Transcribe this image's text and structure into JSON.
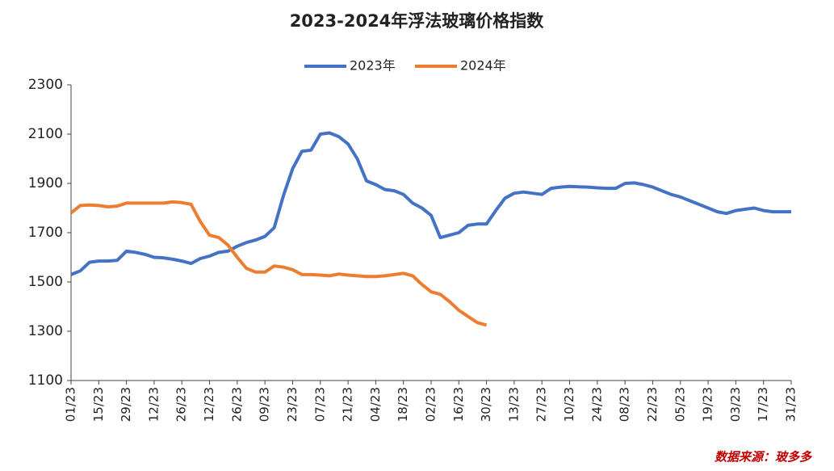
{
  "chart_data": {
    "type": "line",
    "title": "2023-2024年浮法玻璃价格指数",
    "source": "数据来源：玻多多",
    "categories": [
      "01/23",
      null,
      null,
      "15/23",
      null,
      null,
      "29/23",
      null,
      null,
      "12/23",
      null,
      null,
      "26/23",
      null,
      null,
      "12/23",
      null,
      null,
      "26/23",
      null,
      null,
      "09/23",
      null,
      null,
      "23/23",
      null,
      null,
      "07/23",
      null,
      null,
      "21/23",
      null,
      null,
      "04/23",
      null,
      null,
      "18/23",
      null,
      null,
      "02/23",
      null,
      null,
      "16/23",
      null,
      null,
      "30/23",
      null,
      null,
      "13/23",
      null,
      null,
      "27/23",
      null,
      null,
      "10/23",
      null,
      null,
      "24/23",
      null,
      null,
      "08/23",
      null,
      null,
      "22/23",
      null,
      null,
      "05/23",
      null,
      null,
      "19/23",
      null,
      null,
      "03/23",
      null,
      null,
      "17/23",
      null,
      null,
      "31/23"
    ],
    "series": [
      {
        "name": "2023年",
        "color": "#4472c4",
        "values": [
          1530,
          1545,
          1580,
          1585,
          1585,
          1588,
          1625,
          1620,
          1612,
          1600,
          1598,
          1592,
          1585,
          1575,
          1595,
          1605,
          1620,
          1625,
          1645,
          1660,
          1670,
          1685,
          1720,
          1850,
          1960,
          2030,
          2035,
          2100,
          2105,
          2090,
          2060,
          2000,
          1910,
          1895,
          1875,
          1870,
          1855,
          1820,
          1800,
          1770,
          1680,
          1690,
          1700,
          1730,
          1735,
          1735,
          1790,
          1840,
          1860,
          1865,
          1860,
          1855,
          1880,
          1885,
          1888,
          1886,
          1885,
          1882,
          1880,
          1880,
          1900,
          1902,
          1895,
          1885,
          1870,
          1855,
          1845,
          1830,
          1815,
          1800,
          1785,
          1778,
          1790,
          1795,
          1800,
          1790,
          1785,
          1785,
          1785
        ]
      },
      {
        "name": "2024年",
        "color": "#ed7d31",
        "values": [
          1780,
          1810,
          1812,
          1810,
          1805,
          1808,
          1820,
          1820,
          1820,
          1820,
          1820,
          1825,
          1822,
          1815,
          1745,
          1690,
          1680,
          1650,
          1600,
          1555,
          1540,
          1540,
          1565,
          1560,
          1550,
          1530,
          1530,
          1528,
          1525,
          1532,
          1528,
          1525,
          1522,
          1522,
          1525,
          1530,
          1535,
          1525,
          1490,
          1460,
          1450,
          1420,
          1385,
          1360,
          1335,
          1325,
          null,
          null,
          null,
          null,
          null,
          null,
          null,
          null,
          null,
          null,
          null,
          null,
          null,
          null,
          null,
          null,
          null,
          null,
          null,
          null,
          null,
          null,
          null,
          null,
          null,
          null,
          null,
          null,
          null,
          null,
          null,
          null,
          null
        ]
      }
    ],
    "ylim": [
      1100,
      2300
    ],
    "yticks": [
      1100,
      1300,
      1500,
      1700,
      1900,
      2100,
      2300
    ],
    "grid": false
  }
}
